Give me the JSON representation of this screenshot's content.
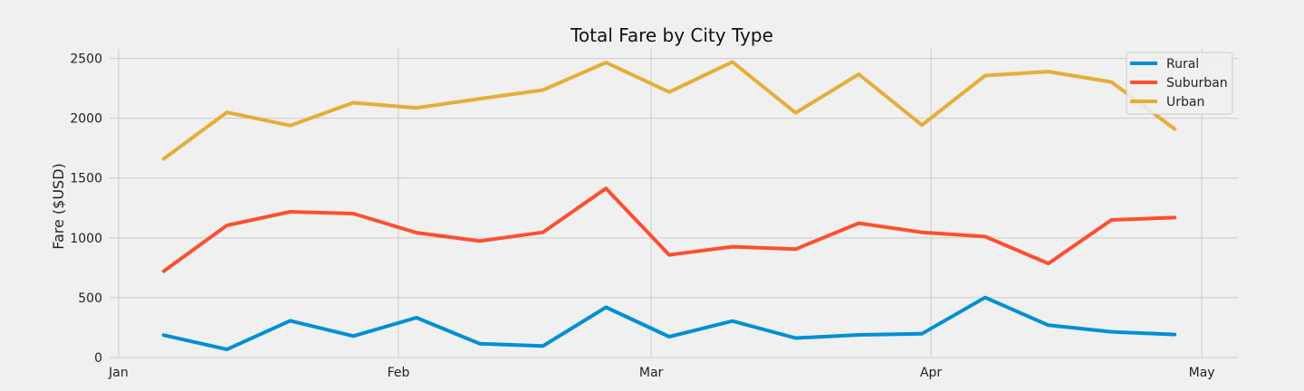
{
  "chart_data": {
    "type": "line",
    "title": "Total Fare by City Type",
    "xlabel": "",
    "ylabel": "Fare ($USD)",
    "x": [
      "2019-01-06",
      "2019-01-13",
      "2019-01-20",
      "2019-01-27",
      "2019-02-03",
      "2019-02-10",
      "2019-02-17",
      "2019-02-24",
      "2019-03-03",
      "2019-03-10",
      "2019-03-17",
      "2019-03-24",
      "2019-03-31",
      "2019-04-07",
      "2019-04-14",
      "2019-04-21",
      "2019-04-28"
    ],
    "xlim": [
      "2018-12-31",
      "2019-05-05"
    ],
    "xticks": [
      {
        "date": "2019-01-01",
        "label": "Jan"
      },
      {
        "date": "2019-02-01",
        "label": "Feb"
      },
      {
        "date": "2019-03-01",
        "label": "Mar"
      },
      {
        "date": "2019-04-01",
        "label": "Apr"
      },
      {
        "date": "2019-05-01",
        "label": "May"
      }
    ],
    "ylim": [
      0,
      2580
    ],
    "yticks": [
      0,
      500,
      1000,
      1500,
      2000,
      2500
    ],
    "grid": true,
    "legend": "top-right",
    "series": [
      {
        "name": "Rural",
        "color": "#008fd5",
        "values": [
          187,
          68,
          307,
          179,
          333,
          116,
          96,
          420,
          174,
          305,
          163,
          189,
          199,
          502,
          270,
          215,
          192
        ]
      },
      {
        "name": "Suburban",
        "color": "#fc4f30",
        "values": [
          722,
          1105,
          1218,
          1203,
          1043,
          974,
          1046,
          1413,
          858,
          926,
          906,
          1123,
          1046,
          1011,
          786,
          1150,
          1170
        ]
      },
      {
        "name": "Urban",
        "color": "#e5ae38",
        "values": [
          1661,
          2050,
          1939,
          2130,
          2087,
          2163,
          2236,
          2466,
          2219,
          2471,
          2045,
          2368,
          1943,
          2357,
          2390,
          2303,
          1910
        ]
      }
    ]
  }
}
